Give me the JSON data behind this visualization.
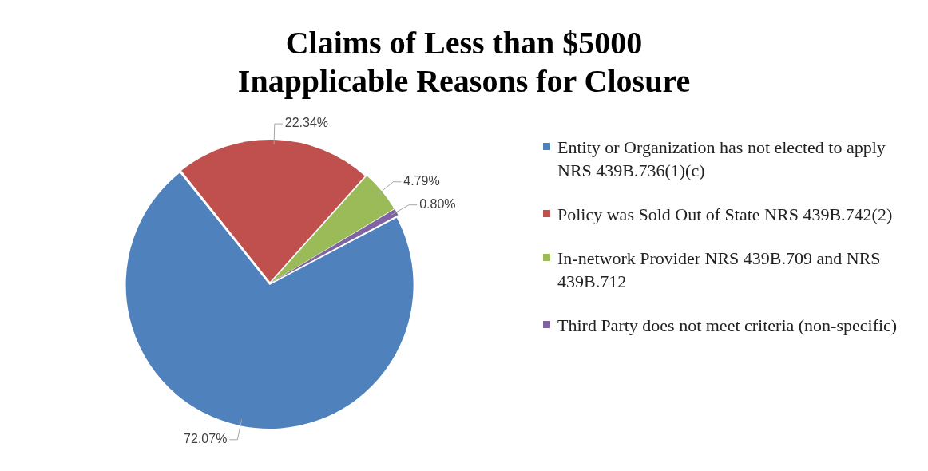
{
  "chart_data": {
    "type": "pie",
    "title": "Claims of Less than $5000\nInapplicable Reasons for Closure",
    "categories": [
      "Entity or Organization has not elected to apply NRS 439B.736(1)(c)",
      "Policy was Sold Out of State NRS 439B.742(2)",
      "In-network Provider NRS 439B.709 and NRS 439B.712",
      "Third Party does not meet criteria (non-specific)"
    ],
    "values": [
      72.07,
      22.34,
      4.79,
      0.8
    ],
    "value_labels": [
      "72.07%",
      "22.34%",
      "4.79%",
      "0.80%"
    ],
    "colors": [
      "#4f81bd",
      "#c0504d",
      "#9bbb59",
      "#8064a2"
    ],
    "legend": "right"
  }
}
